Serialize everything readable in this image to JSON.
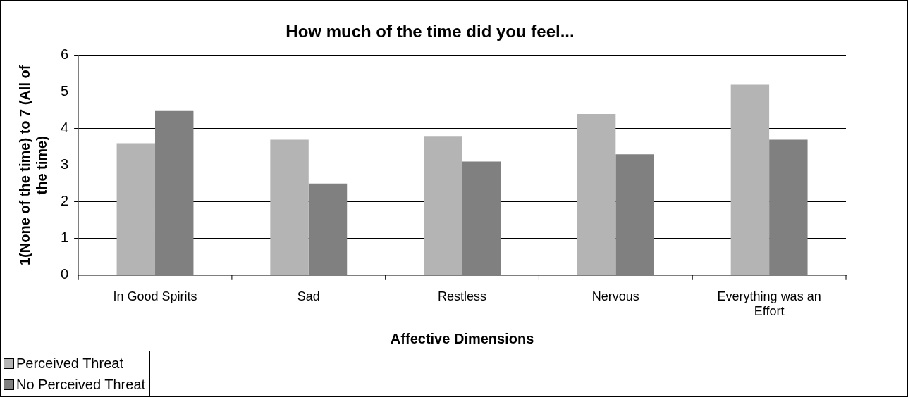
{
  "chart_data": {
    "type": "bar",
    "title": "How much of the time did you feel...",
    "xlabel": "Affective Dimensions",
    "ylabel": "1(None of the time) to 7 (All of the time)",
    "categories": [
      "In Good Spirits",
      "Sad",
      "Restless",
      "Nervous",
      "Everything was an Effort"
    ],
    "series": [
      {
        "name": "Perceived Threat",
        "color": "#b4b4b4",
        "values": [
          3.6,
          3.7,
          3.8,
          4.4,
          5.2
        ]
      },
      {
        "name": "No Perceived Threat",
        "color": "#808080",
        "values": [
          4.5,
          2.5,
          3.1,
          3.3,
          3.7
        ]
      }
    ],
    "ylim": [
      0,
      6
    ],
    "yticks": [
      0,
      1,
      2,
      3,
      4,
      5,
      6
    ],
    "grid": "y",
    "legend": "bottom left"
  }
}
